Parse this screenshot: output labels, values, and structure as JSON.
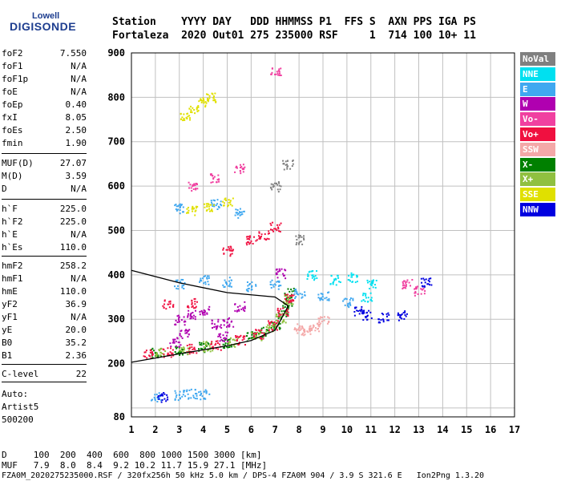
{
  "logo": {
    "top": "Lowell",
    "main": "DIGISONDE"
  },
  "header": {
    "line1": "Station    YYYY DAY   DDD HHMMSS P1  FFS S  AXN PPS IGA PS",
    "line2": "Fortaleza  2020 Out01 275 235000 RSF     1  714 100 10+ 11"
  },
  "side_params": [
    {
      "k": "foF2",
      "v": "7.550"
    },
    {
      "k": "foF1",
      "v": "N/A"
    },
    {
      "k": "foF1p",
      "v": "N/A"
    },
    {
      "k": "foE",
      "v": "N/A"
    },
    {
      "k": "foEp",
      "v": "0.40"
    },
    {
      "k": "fxI",
      "v": "8.05"
    },
    {
      "k": "foEs",
      "v": "2.50"
    },
    {
      "k": "fmin",
      "v": "1.90"
    },
    {
      "k": "MUF(D)",
      "v": "27.07"
    },
    {
      "k": "M(D)",
      "v": "3.59"
    },
    {
      "k": "D",
      "v": "N/A"
    },
    {
      "k": "h`F",
      "v": "225.0"
    },
    {
      "k": "h`F2",
      "v": "225.0"
    },
    {
      "k": "h`E",
      "v": "N/A"
    },
    {
      "k": "h`Es",
      "v": "110.0"
    },
    {
      "k": "hmF2",
      "v": "258.2"
    },
    {
      "k": "hmF1",
      "v": "N/A"
    },
    {
      "k": "hmE",
      "v": "110.0"
    },
    {
      "k": "yF2",
      "v": "36.9"
    },
    {
      "k": "yF1",
      "v": "N/A"
    },
    {
      "k": "yE",
      "v": "20.0"
    },
    {
      "k": "B0",
      "v": "35.2"
    },
    {
      "k": "B1",
      "v": "2.36"
    },
    {
      "k": "C-level",
      "v": "22"
    }
  ],
  "autoscale": {
    "line1": "Auto:",
    "line2": "Artist5",
    "line3": "500200"
  },
  "legend": [
    {
      "label": "NoVal",
      "color": "#808080"
    },
    {
      "label": "NNE",
      "color": "#00e0f0"
    },
    {
      "label": "E",
      "color": "#40a8f0"
    },
    {
      "label": "W",
      "color": "#b000b0"
    },
    {
      "label": "Vo-",
      "color": "#f040a0"
    },
    {
      "label": "Vo+",
      "color": "#f01040"
    },
    {
      "label": "SSW",
      "color": "#f4a8a8"
    },
    {
      "label": "X-",
      "color": "#008000"
    },
    {
      "label": "X+",
      "color": "#90c040"
    },
    {
      "label": "SSE",
      "color": "#e0e000"
    },
    {
      "label": "NNW",
      "color": "#0000e0"
    }
  ],
  "bottom": {
    "d_line": "D     100  200  400  600  800 1000 1500 3000 [km]",
    "muf_line": "MUF   7.9  8.0  8.4  9.2 10.2 11.7 15.9 27.1 [MHz]",
    "footer": "FZA0M_2020275235000.RSF / 320fx256h 50 kHz 5.0 km / DPS-4 FZA0M 904 / 3.9 S 321.6 E   Ion2Png 1.3.20"
  },
  "chart_data": {
    "type": "scatter",
    "xlim": [
      1,
      17
    ],
    "ylim": [
      80,
      900
    ],
    "xticks": [
      1,
      2,
      3,
      4,
      5,
      6,
      7,
      8,
      9,
      10,
      11,
      12,
      13,
      14,
      15,
      16,
      17
    ],
    "yticks": [
      100,
      200,
      300,
      400,
      500,
      600,
      700,
      800,
      900
    ],
    "ytick_labels_shown": [
      200,
      300,
      400,
      500,
      600,
      700,
      800,
      900
    ],
    "extra_ylabel": "80",
    "grid": true,
    "traces": [
      {
        "name": "X-",
        "color": "#008000",
        "points": [
          [
            2.0,
            225
          ],
          [
            3.0,
            230
          ],
          [
            4.0,
            238
          ],
          [
            5.0,
            248
          ],
          [
            6.0,
            262
          ],
          [
            6.5,
            272
          ],
          [
            7.0,
            290
          ],
          [
            7.3,
            310
          ],
          [
            7.5,
            335
          ],
          [
            7.6,
            360
          ]
        ]
      },
      {
        "name": "X+",
        "color": "#90c040",
        "points": [
          [
            2.2,
            226
          ],
          [
            3.2,
            232
          ],
          [
            4.2,
            240
          ],
          [
            5.2,
            250
          ],
          [
            6.2,
            265
          ],
          [
            6.8,
            282
          ],
          [
            7.2,
            305
          ],
          [
            7.5,
            345
          ]
        ]
      },
      {
        "name": "Vo+",
        "color": "#f01040",
        "points": [
          [
            1.7,
            222
          ],
          [
            2.5,
            227
          ],
          [
            3.5,
            234
          ],
          [
            4.5,
            243
          ],
          [
            5.5,
            255
          ],
          [
            6.3,
            268
          ],
          [
            6.9,
            288
          ],
          [
            7.3,
            318
          ],
          [
            7.55,
            350
          ],
          [
            2.5,
            335
          ],
          [
            3.5,
            338
          ],
          [
            5.0,
            455
          ],
          [
            6.0,
            480
          ],
          [
            6.5,
            490
          ],
          [
            7.0,
            510
          ]
        ]
      },
      {
        "name": "W",
        "color": "#b000b0",
        "points": [
          [
            3.0,
            300
          ],
          [
            3.5,
            310
          ],
          [
            4.0,
            320
          ],
          [
            4.5,
            290
          ],
          [
            5.0,
            295
          ],
          [
            5.5,
            330
          ],
          [
            3.2,
            270
          ],
          [
            4.8,
            262
          ],
          [
            2.8,
            250
          ],
          [
            7.2,
            405
          ]
        ]
      },
      {
        "name": "E",
        "color": "#40a8f0",
        "points": [
          [
            3.0,
            380
          ],
          [
            4.0,
            390
          ],
          [
            5.0,
            385
          ],
          [
            6.0,
            375
          ],
          [
            7.0,
            380
          ],
          [
            8.0,
            360
          ],
          [
            9.0,
            355
          ],
          [
            10.0,
            340
          ],
          [
            2.0,
            125
          ],
          [
            3.0,
            130
          ],
          [
            3.5,
            133
          ],
          [
            4.0,
            132
          ],
          [
            3.0,
            550
          ],
          [
            4.5,
            560
          ],
          [
            5.5,
            540
          ]
        ]
      },
      {
        "name": "NNE",
        "color": "#00e0f0",
        "points": [
          [
            8.5,
            400
          ],
          [
            9.5,
            390
          ],
          [
            10.2,
            395
          ],
          [
            10.8,
            350
          ],
          [
            11.0,
            380
          ]
        ]
      },
      {
        "name": "NNW",
        "color": "#0000e0",
        "points": [
          [
            10.5,
            320
          ],
          [
            10.8,
            310
          ],
          [
            11.5,
            305
          ],
          [
            12.3,
            310
          ],
          [
            13.3,
            385
          ],
          [
            2.3,
            125
          ]
        ]
      },
      {
        "name": "SSE",
        "color": "#e0e000",
        "points": [
          [
            3.2,
            760
          ],
          [
            3.6,
            775
          ],
          [
            4.0,
            790
          ],
          [
            4.3,
            800
          ],
          [
            3.5,
            545
          ],
          [
            4.2,
            555
          ],
          [
            5.0,
            565
          ]
        ]
      },
      {
        "name": "SSW",
        "color": "#f4a8a8",
        "points": [
          [
            8.0,
            280
          ],
          [
            8.3,
            275
          ],
          [
            8.6,
            285
          ],
          [
            9.0,
            300
          ]
        ]
      },
      {
        "name": "Vo-",
        "color": "#f040a0",
        "points": [
          [
            3.5,
            600
          ],
          [
            4.5,
            620
          ],
          [
            5.5,
            640
          ],
          [
            7.0,
            860
          ],
          [
            12.5,
            380
          ],
          [
            13.0,
            365
          ]
        ]
      },
      {
        "name": "NoVal",
        "color": "#808080",
        "points": [
          [
            7.0,
            600
          ],
          [
            7.5,
            650
          ],
          [
            8.0,
            480
          ]
        ]
      }
    ],
    "profile": [
      [
        1.0,
        203
      ],
      [
        3.0,
        222
      ],
      [
        5.0,
        240
      ],
      [
        6.0,
        252
      ],
      [
        7.0,
        275
      ],
      [
        7.55,
        330
      ],
      [
        7.0,
        350
      ],
      [
        5.0,
        360
      ],
      [
        3.0,
        382
      ],
      [
        1.0,
        410
      ]
    ]
  }
}
